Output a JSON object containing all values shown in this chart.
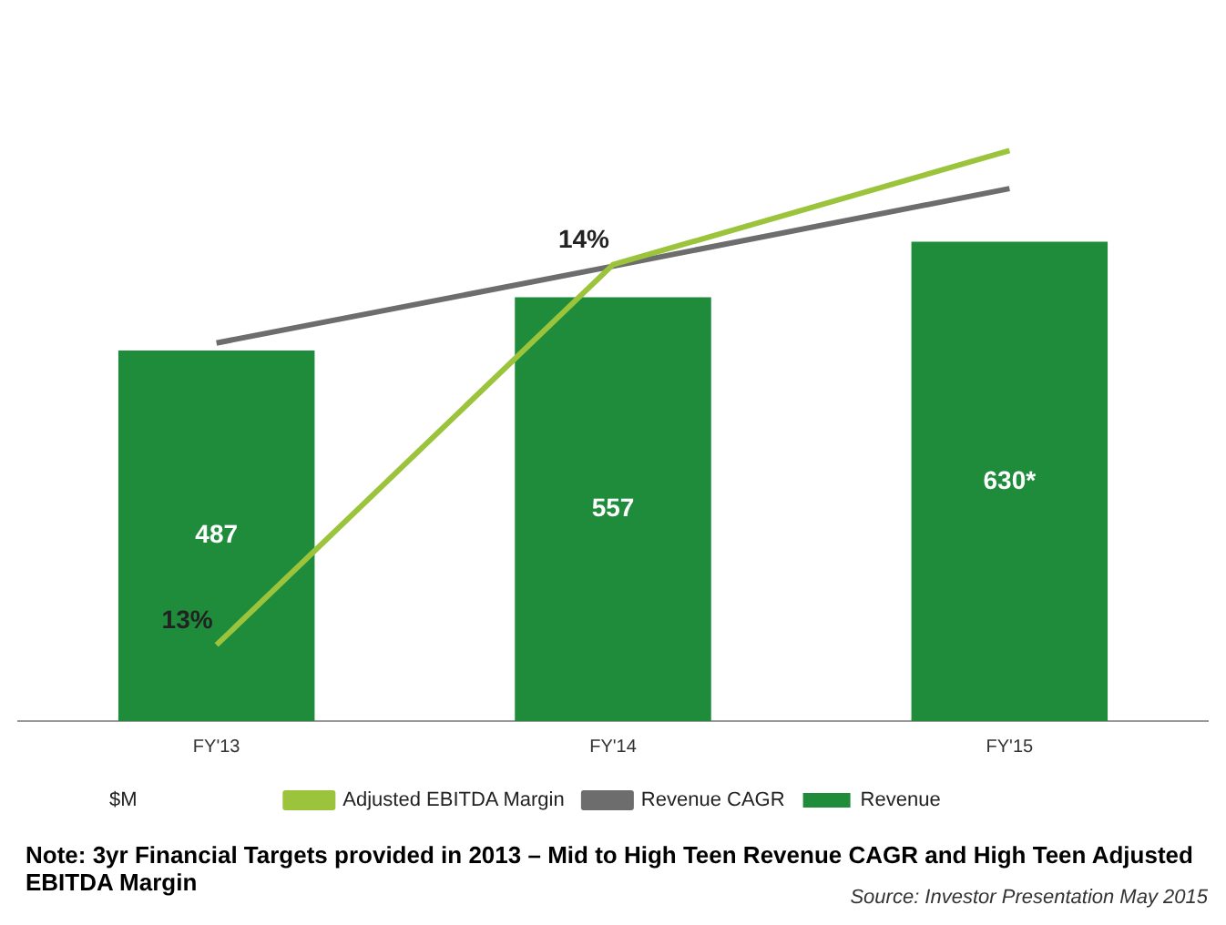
{
  "chart_data": {
    "type": "bar",
    "categories": [
      "FY'13",
      "FY'14",
      "FY'15"
    ],
    "series": [
      {
        "name": "Revenue",
        "color": "#1e8c3a",
        "values": [
          487,
          557,
          630
        ],
        "value_labels": [
          "487",
          "557",
          "630*"
        ]
      },
      {
        "name": "Adjusted EBITDA Margin",
        "type": "line",
        "axis": "y2",
        "color": "#9bc43c",
        "values": [
          13,
          14,
          14.3
        ],
        "value_labels": [
          "13%",
          "14%",
          null
        ]
      },
      {
        "name": "Revenue CAGR",
        "type": "line",
        "color": "#6d6d6d",
        "values": [
          497,
          598,
          700
        ]
      }
    ],
    "grid": false,
    "legend": "bottom",
    "marker": "none",
    "annotations": [
      "$M",
      "Note: 3yr Financial Targets provided in 2013 – Mid to High Teen Revenue CAGR and High Teen Adjusted EBITDA Margin",
      "Source: Investor Presentation May 2015"
    ]
  }
}
